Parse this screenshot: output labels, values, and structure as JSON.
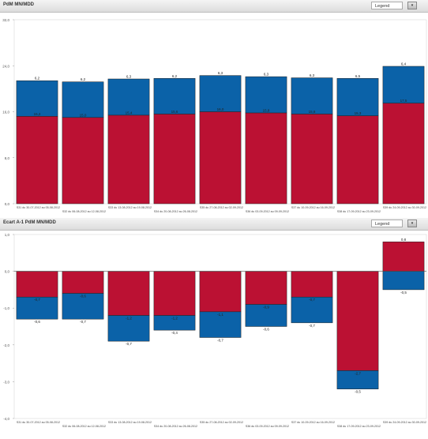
{
  "panels": [
    {
      "title": "PdM MN/MDD",
      "legend_label": "Legend",
      "chart_data": {
        "type": "bar",
        "stacked": true,
        "categories": [
          "S31 du 30-07-2012 au 05-08-2012",
          "S32 du 06-08-2012 au 12-08-2012",
          "S33 du 13-08-2012 au 19-08-2012",
          "S34 du 20-08-2012 au 26-08-2012",
          "S35 du 27-08-2012 au 02-09-2012",
          "S36 du 03-09-2012 au 09-09-2012",
          "S37 du 10-09-2012 au 16-09-2012",
          "S38 du 17-09-2012 au 23-09-2012",
          "S39 du 24-09-2012 au 30-09-2012"
        ],
        "series": [
          {
            "values": [
              15.2,
              15.0,
              15.4,
              15.6,
              16.0,
              15.8,
              15.6,
              15.3,
              17.5
            ],
            "labels": [
              "15,2",
              "15,0",
              "15,4",
              "15,6",
              "16,0",
              "15,8",
              "15,6",
              "15,3",
              "17,5"
            ],
            "color": "#bb1133"
          },
          {
            "values": [
              6.2,
              6.2,
              6.3,
              6.2,
              6.3,
              6.3,
              6.3,
              6.5,
              6.4
            ],
            "labels": [
              "6,2",
              "6,2",
              "6,3",
              "6,2",
              "6,3",
              "6,3",
              "6,3",
              "6,5",
              "6,4"
            ],
            "color": "#0b62a8"
          }
        ],
        "yticks": [
          "0,0",
          "8,0",
          "16,0",
          "24,0",
          "32,0"
        ],
        "ylim": [
          0,
          32
        ]
      }
    },
    {
      "title": "Ecart A-1 PdM MN/MDD",
      "legend_label": "Legend",
      "chart_data": {
        "type": "bar",
        "stacked": true,
        "categories": [
          "S31 du 30-07-2012 au 05-08-2012",
          "S32 du 06-08-2012 au 12-08-2012",
          "S33 du 13-08-2012 au 19-08-2012",
          "S34 du 20-08-2012 au 26-08-2012",
          "S35 du 27-08-2012 au 02-09-2012",
          "S36 du 03-09-2012 au 09-09-2012",
          "S37 du 10-09-2012 au 16-09-2012",
          "S38 du 17-09-2012 au 23-09-2012",
          "S39 du 24-09-2012 au 30-09-2012"
        ],
        "series": [
          {
            "values": [
              -0.7,
              -0.6,
              -1.2,
              -1.2,
              -1.1,
              -0.9,
              -0.7,
              -2.7,
              0.8
            ],
            "labels": [
              "-0,7",
              "-0,6",
              "-1,2",
              "-1,2",
              "-1,1",
              "-0,9",
              "-0,7",
              "-2,7",
              "0,8"
            ],
            "color": "#bb1133"
          },
          {
            "values": [
              -0.6,
              -0.7,
              -0.7,
              -0.4,
              -0.7,
              -0.6,
              -0.7,
              -0.5,
              -0.5
            ],
            "labels": [
              "-0,6",
              "-0,7",
              "-0,7",
              "-0,4",
              "-0,7",
              "-0,6",
              "-0,7",
              "-0,5",
              "-0,5"
            ],
            "color": "#0b62a8"
          }
        ],
        "yticks": [
          "-4,0",
          "-3,0",
          "-2,0",
          "-1,0",
          "0,0",
          "1,0"
        ],
        "ylim": [
          -4,
          1
        ]
      }
    }
  ]
}
